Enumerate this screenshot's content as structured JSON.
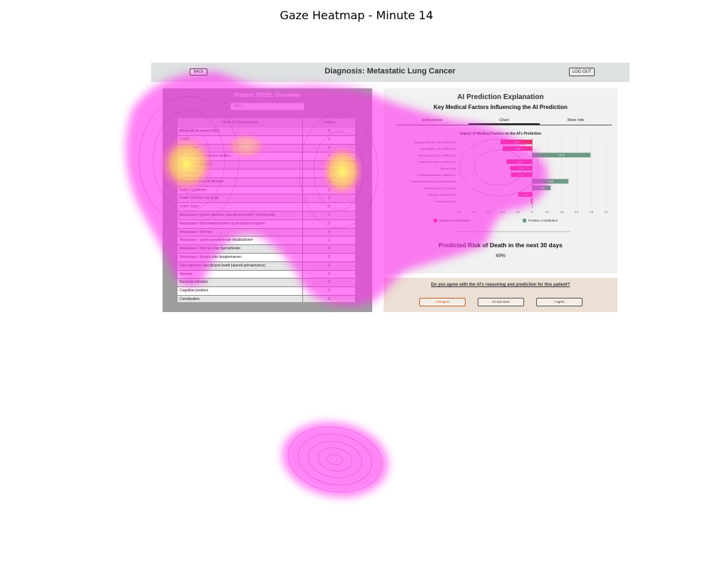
{
  "figure": {
    "title": "Gaze Heatmap - Minute 14"
  },
  "app": {
    "back_label": "BACK",
    "logout_label": "LOG OUT",
    "diagnosis_title": "Diagnosis: Metastatic Lung Cancer"
  },
  "patient": {
    "title": "Patient 79315: Overview",
    "filter_placeholder": "Filter...",
    "table": {
      "headers": [
        "Vitals & Informations",
        "Values"
      ],
      "rows": [
        [
          "Moderate or severe CKD",
          "0"
        ],
        [
          "COPD",
          "0"
        ],
        [
          "CVA or TIA",
          "0"
        ],
        [
          "Uncomplicated diabetes mellitus",
          "0"
        ],
        [
          "Myocardial infarction",
          "0"
        ],
        [
          "Hemiplegia",
          "0"
        ],
        [
          "Peripheral vascular disease",
          "0"
        ],
        [
          "Kræft i tyktarmen",
          "0"
        ],
        [
          "Kræft i bronkier og lunge",
          "1"
        ],
        [
          "Kræft i bryst",
          "0"
        ],
        [
          "Metastaser og ikke nærmere specificeret kræft i lymfeknuder",
          "0"
        ],
        [
          "Metastaser i åndedrætsorganer og fordøjelsesorganer",
          "0"
        ],
        [
          "Metastaser i hjernen",
          "0"
        ],
        [
          "Metastaser i andre specificerede lokalisationer",
          "1"
        ],
        [
          "Metastaser i hjernen eller hjernehinder",
          "0"
        ],
        [
          "Metastaser i knogle eller knoglemarven",
          "0"
        ],
        [
          "Ikke nærmere specificeret kræft (ukendt primærtumor)",
          "0"
        ],
        [
          "Anemia",
          "0"
        ],
        [
          "Bacterial infection",
          "0"
        ],
        [
          "Cognitive problem",
          "0"
        ],
        [
          "Constipation",
          "0"
        ]
      ]
    }
  },
  "ai": {
    "title": "AI Prediction Explanation",
    "subtitle": "Key Medical Factors Influencing the AI Prediction",
    "tabs": [
      "Instructions",
      "Chart",
      "More Info"
    ],
    "active_tab": "Chart",
    "risk_title": "Predicted Risk of Death in the next 30 days",
    "risk_value": "49%",
    "question": "Do you agree with the AI's reasoning and prediction for this patient?",
    "buttons": [
      "I Disagree",
      "I'm Not Sure",
      "I Agree"
    ]
  },
  "chart_data": {
    "type": "bar",
    "orientation": "horizontal",
    "title": "Impact of Medical Factors on the AI's Prediction",
    "categories": [
      "Hydrogen carbonat i blod; (difference)",
      "Haemoglobin i blod; (difference)",
      "Natrium-pplasma; B-L (difference)",
      "Creatininium i plasma; (difference)",
      "Calcium-i blod",
      "Kreatininkoncentration; (difference)",
      "Leukocytes in blodprøve; (Vædtet mean)",
      "Albumin-plasma; B-L (mean)",
      "Hydrogen carbonat i blod",
      "Creatininium i blod"
    ],
    "values": [
      -0.43,
      -0.4,
      0.79,
      -0.35,
      -0.3,
      -0.29,
      0.49,
      0.25,
      -0.19,
      -0.02
    ],
    "xlim": [
      -1.0,
      1.0
    ],
    "xticks": [
      "-1.0",
      "-0.8",
      "-0.6",
      "-0.4",
      "-0.2",
      "0",
      "0.2",
      "0.4",
      "0.6",
      "0.8",
      "1.0"
    ],
    "grid": true,
    "legend": [
      "Negative Contribution",
      "Positive Contribution"
    ],
    "legend_position": "bottom",
    "colors": {
      "negative": "#e8306a",
      "positive": "#6e9a86"
    }
  },
  "heatmap": {
    "colormap": [
      "#ff00ff",
      "#ffff66"
    ],
    "regions": [
      "Patient overview table",
      "AI explanation chart",
      "Lower blank area"
    ]
  }
}
